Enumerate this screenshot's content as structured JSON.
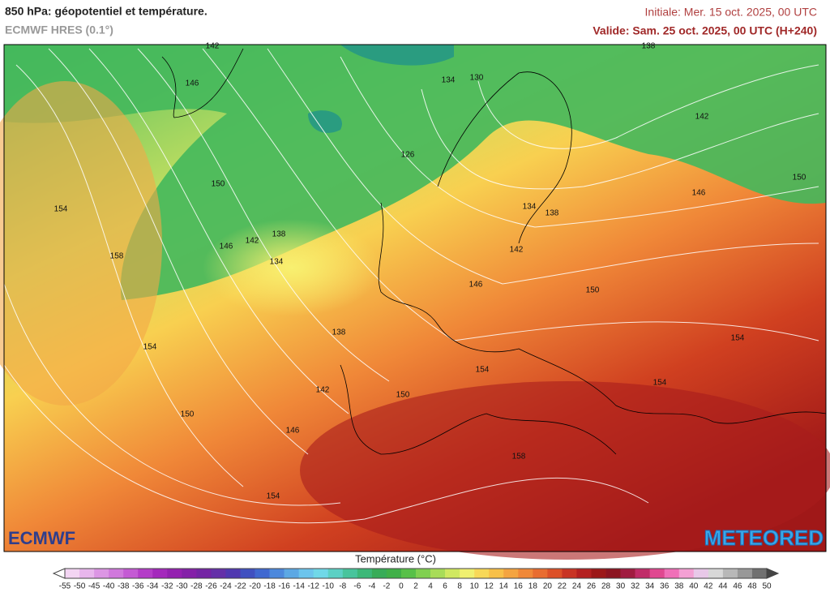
{
  "header": {
    "title": "850 hPa: géopotentiel et température.",
    "model": "ECMWF HRES (0.1°)",
    "initial": "Initiale: Mer. 15 oct. 2025, 00 UTC",
    "valid": "Valide: Sam. 25 oct. 2025, 00 UTC (H+240)"
  },
  "map": {
    "contour_labels": [
      142,
      146,
      134,
      130,
      138,
      142,
      150,
      154,
      126,
      150,
      146,
      134,
      138,
      146,
      142,
      138,
      134,
      158,
      142,
      146,
      150,
      138,
      154,
      154,
      154,
      154,
      142,
      150,
      150,
      146,
      158,
      154
    ]
  },
  "logos": {
    "left": "ECMWF",
    "right": "METEORED"
  },
  "legend": {
    "title": "Température (°C)",
    "ticks": [
      -55,
      -50,
      -45,
      -40,
      -38,
      -36,
      -34,
      -32,
      -30,
      -28,
      -26,
      -24,
      -22,
      -20,
      -18,
      -16,
      -14,
      -12,
      -10,
      -8,
      -6,
      -4,
      -2,
      0,
      2,
      4,
      6,
      8,
      10,
      12,
      14,
      16,
      18,
      20,
      22,
      24,
      26,
      28,
      30,
      32,
      34,
      36,
      38,
      40,
      42,
      44,
      46,
      48,
      50
    ],
    "colors": [
      "#f3d5f3",
      "#e8b6ec",
      "#dc96e4",
      "#d078dc",
      "#c45ad4",
      "#b43cc8",
      "#a428bc",
      "#9420b0",
      "#8420a8",
      "#7424a4",
      "#6430a8",
      "#5038b0",
      "#4050c0",
      "#4068d0",
      "#4c88dc",
      "#5ca8e4",
      "#6cc4ec",
      "#70d8e8",
      "#5cd0c4",
      "#48c49c",
      "#3cb878",
      "#38ac58",
      "#40b048",
      "#58c048",
      "#80d050",
      "#a8dc58",
      "#d0e860",
      "#f0f070",
      "#f8d858",
      "#f8c048",
      "#f4a440",
      "#f08838",
      "#e86c30",
      "#dc5028",
      "#c83424",
      "#b42020",
      "#9c1818",
      "#8c1420",
      "#a01c40",
      "#c02c68",
      "#e04890",
      "#f070b8",
      "#f4a0d4",
      "#e8c8e8",
      "#d8d8d8",
      "#b8b8b8",
      "#989898",
      "#707070"
    ]
  }
}
